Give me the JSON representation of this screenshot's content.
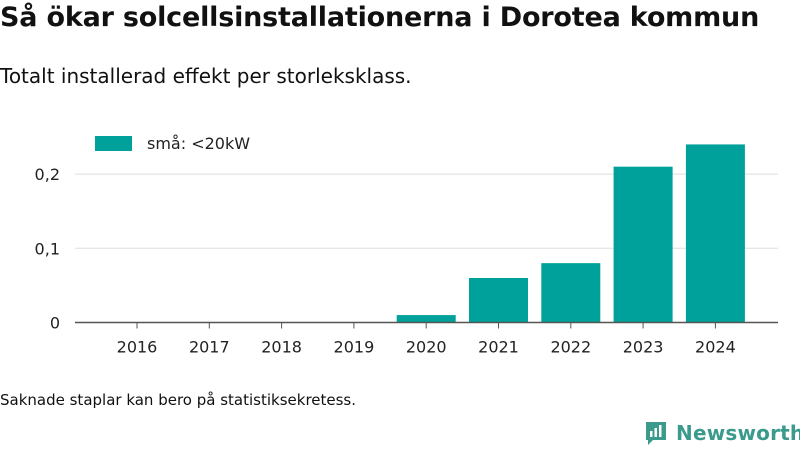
{
  "header": {
    "title": "Så ökar solcellsinstallationerna i Dorotea kommun",
    "subtitle": "Totalt installerad effekt per storleksklass."
  },
  "footnote": "Saknade staplar kan bero på statistiksekretess.",
  "brand": {
    "name": "Newsworthy",
    "icon": "newsworthy-logo-icon",
    "color": "#3a9a8c"
  },
  "chart_data": {
    "type": "bar",
    "categories": [
      "2016",
      "2017",
      "2018",
      "2019",
      "2020",
      "2021",
      "2022",
      "2023",
      "2024"
    ],
    "series": [
      {
        "name": "små: <20kW",
        "color": "#00a19a",
        "values": [
          0,
          0,
          0,
          0,
          0.01,
          0.06,
          0.08,
          0.21,
          0.24
        ]
      }
    ],
    "yticks": [
      0,
      0.1,
      0.2
    ],
    "ytick_labels": [
      "0",
      "0,1",
      "0,2"
    ],
    "ylim": [
      0,
      0.25
    ],
    "grid": true,
    "legend_position": "top-left",
    "xlabel": "",
    "ylabel": ""
  }
}
